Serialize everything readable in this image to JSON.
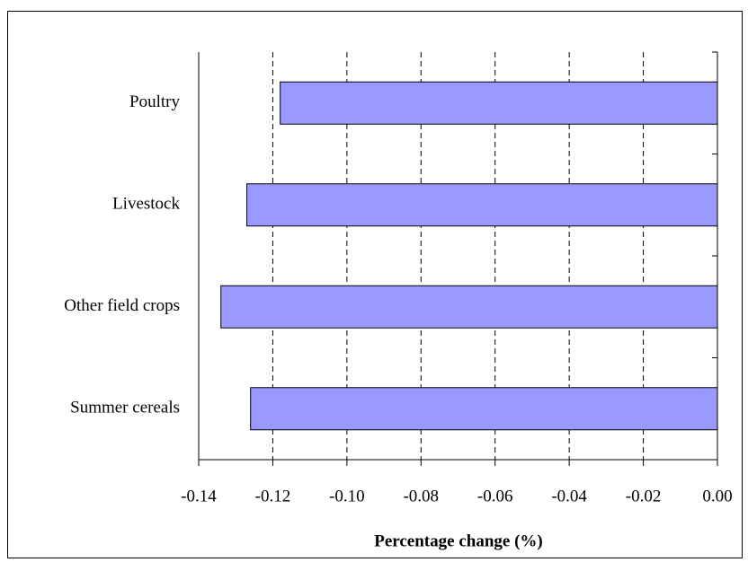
{
  "chart_data": {
    "type": "barh",
    "categories": [
      "Poultry",
      "Livestock",
      "Other field crops",
      "Summer cereals"
    ],
    "values": [
      -0.118,
      -0.127,
      -0.134,
      -0.126
    ],
    "color": "#9999ff",
    "x_label": "Percentage change (%)",
    "xlim": [
      -0.14,
      0
    ],
    "xticks": [
      {
        "value": -0.14,
        "label": "-0.14"
      },
      {
        "value": -0.12,
        "label": "-0.12"
      },
      {
        "value": -0.1,
        "label": "-0.10"
      },
      {
        "value": -0.08,
        "label": "-0.08"
      },
      {
        "value": -0.06,
        "label": "-0.06"
      },
      {
        "value": -0.04,
        "label": "-0.04"
      },
      {
        "value": -0.02,
        "label": "-0.02"
      },
      {
        "value": 0,
        "label": "0.00"
      }
    ],
    "grid": true
  }
}
